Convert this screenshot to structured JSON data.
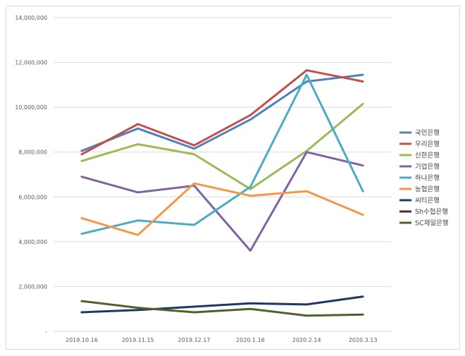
{
  "chart_data": {
    "type": "line",
    "title": "",
    "xlabel": "",
    "ylabel": "",
    "ylim": [
      0,
      14000000
    ],
    "yticks": [
      {
        "value": 0,
        "label": "-"
      },
      {
        "value": 2000000,
        "label": "2,000,000"
      },
      {
        "value": 4000000,
        "label": "4,000,000"
      },
      {
        "value": 6000000,
        "label": "6,000,000"
      },
      {
        "value": 8000000,
        "label": "8,000,000"
      },
      {
        "value": 10000000,
        "label": "10,000,000"
      },
      {
        "value": 12000000,
        "label": "12,000,000"
      },
      {
        "value": 14000000,
        "label": "14,000,000"
      }
    ],
    "categories": [
      "2019.10.16",
      "2019.11.15",
      "2019.12.17",
      "2020.1.16",
      "2020.2.14",
      "2020.3.13"
    ],
    "grid": true,
    "legend": "right",
    "series": [
      {
        "name": "국민은행",
        "color": "#4f81bd",
        "values": [
          8050000,
          9050000,
          8150000,
          9450000,
          11150000,
          11450000
        ]
      },
      {
        "name": "우리은행",
        "color": "#c0504d",
        "values": [
          7900000,
          9250000,
          8300000,
          9650000,
          11650000,
          11150000
        ]
      },
      {
        "name": "신한은행",
        "color": "#9bbb59",
        "values": [
          7600000,
          8350000,
          7900000,
          6350000,
          8050000,
          10150000
        ]
      },
      {
        "name": "기업은행",
        "color": "#8064a2",
        "values": [
          6900000,
          6200000,
          6500000,
          3600000,
          8000000,
          7400000
        ]
      },
      {
        "name": "하나은행",
        "color": "#4bacc6",
        "values": [
          4350000,
          4950000,
          4750000,
          6450000,
          11450000,
          6250000
        ]
      },
      {
        "name": "농협은행",
        "color": "#f79646",
        "values": [
          5050000,
          4300000,
          6600000,
          6050000,
          6250000,
          5200000
        ]
      },
      {
        "name": "씨티은행",
        "color": "#1f3864",
        "values": [
          850000,
          950000,
          1100000,
          1250000,
          1200000,
          1550000
        ]
      },
      {
        "name": "Sh수협은행",
        "color": "#632523",
        "values": [
          null,
          null,
          null,
          null,
          null,
          null
        ]
      },
      {
        "name": "SC제일은행",
        "color": "#4f6228",
        "values": [
          1350000,
          1050000,
          850000,
          1000000,
          700000,
          750000
        ]
      }
    ]
  }
}
